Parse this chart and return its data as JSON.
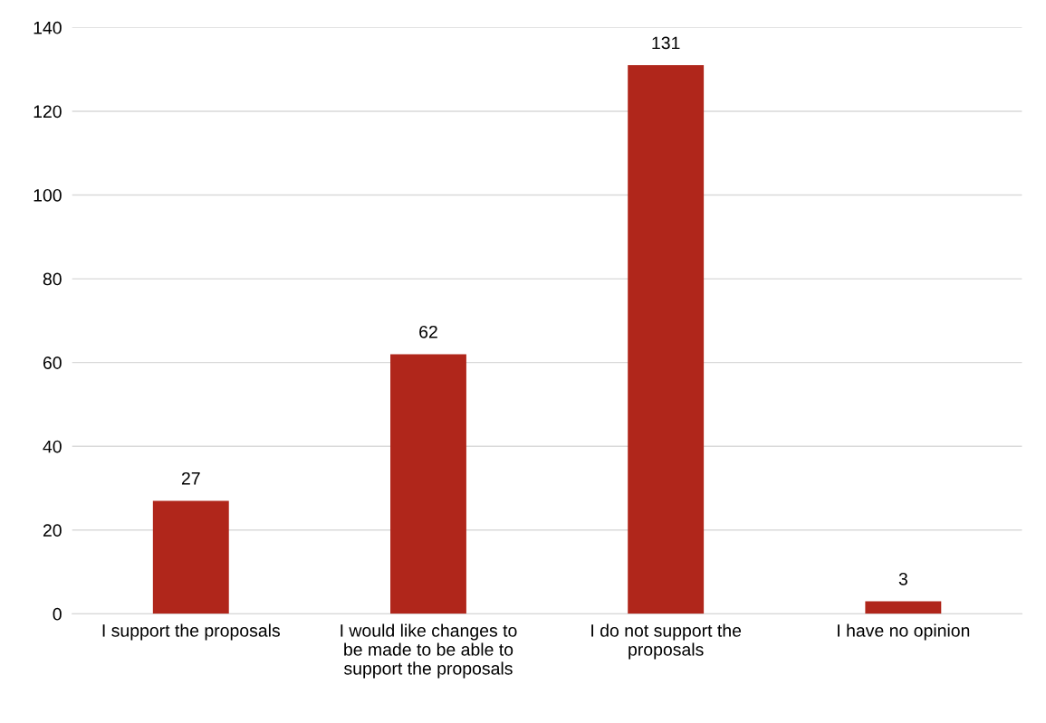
{
  "chart_data": {
    "type": "bar",
    "categories": [
      "I support the proposals",
      "I would like changes to\nbe made to be able to\nsupport the proposals",
      "I do not support the\nproposals",
      "I have no opinion"
    ],
    "values": [
      27,
      62,
      131,
      3
    ],
    "color": "#b0261b",
    "ylim": [
      0,
      140
    ],
    "yticks": [
      0,
      20,
      40,
      60,
      80,
      100,
      120,
      140
    ],
    "grid": "y",
    "data_labels": true
  }
}
